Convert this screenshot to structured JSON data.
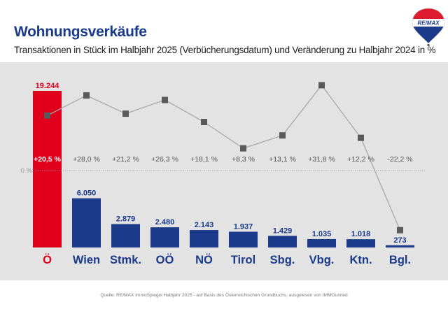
{
  "header": {
    "title": "Wohnungsverkäufe",
    "subtitle": "Transaktionen in Stück im Halbjahr 2025 (Verbücherungsdatum) und Veränderung zu Halbjahr 2024 in %",
    "logo_text": "RE/MAX"
  },
  "colors": {
    "title": "#1b3a8a",
    "highlight_bar": "#e0001b",
    "bar": "#1b3a8a",
    "line": "#a8a8a8",
    "marker": "#5a5a5a",
    "panel": "#e3e3e3"
  },
  "chart_data": {
    "type": "bar",
    "title": "Wohnungsverkäufe",
    "subtitle": "Transaktionen in Stück im Halbjahr 2025 (Verbücherungsdatum) und Veränderung zu Halbjahr 2024 in %",
    "categories": [
      "Ö",
      "Wien",
      "Stmk.",
      "OÖ",
      "NÖ",
      "Tirol",
      "Sbg.",
      "Vbg.",
      "Ktn.",
      "Bgl."
    ],
    "series": [
      {
        "name": "Transaktionen Halbjahr 2025",
        "type": "bar",
        "values": [
          19244,
          6050,
          2879,
          2480,
          2143,
          1937,
          1429,
          1035,
          1018,
          273
        ],
        "labels": [
          "19.244",
          "6.050",
          "2.879",
          "2.480",
          "2.143",
          "1.937",
          "1.429",
          "1.035",
          "1.018",
          "273"
        ],
        "highlight_index": 0
      },
      {
        "name": "Veränderung zu Halbjahr 2024",
        "type": "line",
        "values": [
          20.5,
          28.0,
          21.2,
          26.3,
          18.1,
          8.3,
          13.1,
          31.8,
          12.2,
          -22.2
        ],
        "labels": [
          "+20,5 %",
          "+28,0 %",
          "+21,2 %",
          "+26,3 %",
          "+18,1 %",
          "+8,3 %",
          "+13,1 %",
          "+31,8 %",
          "+12,2 %",
          "-22,2 %"
        ]
      }
    ],
    "zero_line_label": "0 %",
    "xlabel": "",
    "ylabel": "",
    "grid": false,
    "legend": "none"
  },
  "footer": {
    "source": "Quelle: RE/MAX ImmoSpiegel  Halbjahr 2025 - auf Basis des Österreichischen Grundbuchs, ausgelesen von IMMOunited"
  }
}
